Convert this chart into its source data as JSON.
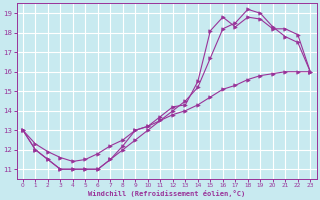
{
  "xlabel": "Windchill (Refroidissement éolien,°C)",
  "xlim": [
    -0.5,
    23.5
  ],
  "ylim": [
    10.5,
    19.5
  ],
  "yticks": [
    11,
    12,
    13,
    14,
    15,
    16,
    17,
    18,
    19
  ],
  "xticks": [
    0,
    1,
    2,
    3,
    4,
    5,
    6,
    7,
    8,
    9,
    10,
    11,
    12,
    13,
    14,
    15,
    16,
    17,
    18,
    19,
    20,
    21,
    22,
    23
  ],
  "bg_color": "#c8eaf0",
  "grid_color": "#ffffff",
  "line_color": "#993399",
  "line1_x": [
    0,
    1,
    2,
    3,
    4,
    5,
    6,
    7,
    8,
    9,
    10,
    11,
    12,
    13,
    14,
    15,
    16,
    17,
    18,
    19,
    20,
    21,
    22,
    23
  ],
  "line1_y": [
    13.0,
    12.0,
    11.5,
    11.0,
    11.0,
    11.0,
    11.0,
    11.5,
    12.0,
    12.5,
    13.0,
    13.5,
    14.0,
    14.5,
    15.2,
    16.7,
    18.2,
    18.5,
    19.2,
    19.0,
    18.3,
    17.8,
    17.5,
    16.0
  ],
  "line2_x": [
    0,
    1,
    2,
    3,
    4,
    5,
    6,
    7,
    8,
    9,
    10,
    11,
    12,
    13,
    14,
    15,
    16,
    17,
    18,
    19,
    20,
    21,
    22,
    23
  ],
  "line2_y": [
    13.0,
    12.0,
    11.5,
    11.0,
    11.0,
    11.0,
    11.0,
    11.5,
    12.2,
    13.0,
    13.2,
    13.7,
    14.2,
    14.3,
    15.5,
    18.1,
    18.8,
    18.3,
    18.8,
    18.7,
    18.2,
    18.2,
    17.9,
    16.0
  ],
  "line3_x": [
    0,
    1,
    2,
    3,
    4,
    5,
    6,
    7,
    8,
    9,
    10,
    11,
    12,
    13,
    14,
    15,
    16,
    17,
    18,
    19,
    20,
    21,
    22,
    23
  ],
  "line3_y": [
    13.0,
    12.3,
    11.9,
    11.6,
    11.4,
    11.5,
    11.8,
    12.2,
    12.5,
    13.0,
    13.2,
    13.5,
    13.8,
    14.0,
    14.3,
    14.7,
    15.1,
    15.3,
    15.6,
    15.8,
    15.9,
    16.0,
    16.0,
    16.0
  ]
}
